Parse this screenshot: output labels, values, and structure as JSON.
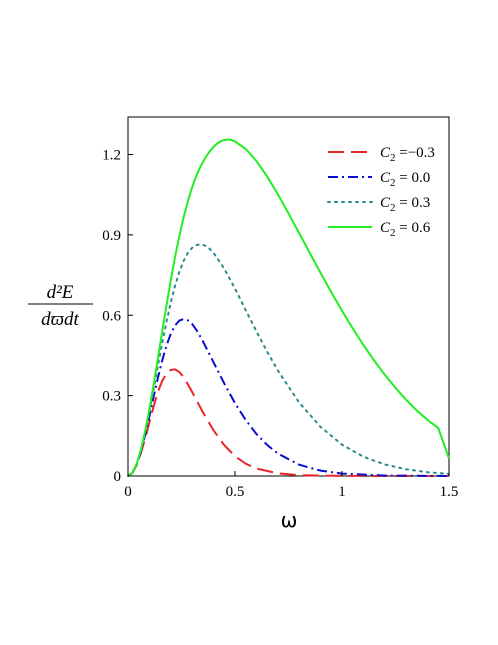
{
  "chart_data": {
    "type": "line",
    "xlabel": "ω",
    "ylabel": {
      "numerator": "d²E",
      "denominator": "dϖdt"
    },
    "xlim": [
      0,
      1.5
    ],
    "ylim": [
      0,
      1.34
    ],
    "xticks": [
      0,
      0.5,
      1,
      1.5
    ],
    "xtick_labels": [
      "0",
      "0.5",
      "1",
      "1.5"
    ],
    "yticks": [
      0,
      0.3,
      0.6,
      0.9,
      1.2
    ],
    "ytick_labels": [
      "0",
      "0.3",
      "0.6",
      "0.9",
      "1.2"
    ],
    "grid": false,
    "legend_position": "top-right",
    "series": [
      {
        "name": "C2 = -0.3",
        "legend_symbol": "C",
        "legend_sub": "2",
        "legend_rest": " =−0.3",
        "color": "#e8262b",
        "dash": "long-dash",
        "points": [
          [
            0,
            0
          ],
          [
            0.02,
            0.011
          ],
          [
            0.04,
            0.04
          ],
          [
            0.06,
            0.085
          ],
          [
            0.08,
            0.14
          ],
          [
            0.1,
            0.2
          ],
          [
            0.12,
            0.26
          ],
          [
            0.14,
            0.315
          ],
          [
            0.16,
            0.355
          ],
          [
            0.18,
            0.383
          ],
          [
            0.2,
            0.396
          ],
          [
            0.22,
            0.398
          ],
          [
            0.24,
            0.388
          ],
          [
            0.26,
            0.368
          ],
          [
            0.28,
            0.342
          ],
          [
            0.3,
            0.313
          ],
          [
            0.32,
            0.283
          ],
          [
            0.35,
            0.238
          ],
          [
            0.4,
            0.17
          ],
          [
            0.45,
            0.115
          ],
          [
            0.5,
            0.074
          ],
          [
            0.55,
            0.046
          ],
          [
            0.6,
            0.028
          ],
          [
            0.7,
            0.01
          ],
          [
            0.8,
            0.003
          ],
          [
            1.0,
            0.0005
          ],
          [
            1.2,
            0.0001
          ],
          [
            1.5,
            0
          ]
        ]
      },
      {
        "name": "C2 = 0.0",
        "legend_symbol": "C",
        "legend_sub": "2",
        "legend_rest": " = 0.0",
        "color": "#0d0dcc",
        "dash": "dash-dot",
        "points": [
          [
            0,
            0
          ],
          [
            0.02,
            0.011
          ],
          [
            0.04,
            0.042
          ],
          [
            0.06,
            0.09
          ],
          [
            0.08,
            0.152
          ],
          [
            0.1,
            0.222
          ],
          [
            0.12,
            0.296
          ],
          [
            0.14,
            0.367
          ],
          [
            0.16,
            0.432
          ],
          [
            0.18,
            0.487
          ],
          [
            0.2,
            0.531
          ],
          [
            0.22,
            0.562
          ],
          [
            0.24,
            0.58
          ],
          [
            0.26,
            0.586
          ],
          [
            0.28,
            0.581
          ],
          [
            0.3,
            0.567
          ],
          [
            0.32,
            0.545
          ],
          [
            0.35,
            0.503
          ],
          [
            0.4,
            0.424
          ],
          [
            0.45,
            0.345
          ],
          [
            0.5,
            0.272
          ],
          [
            0.55,
            0.209
          ],
          [
            0.6,
            0.157
          ],
          [
            0.65,
            0.116
          ],
          [
            0.7,
            0.084
          ],
          [
            0.8,
            0.042
          ],
          [
            0.9,
            0.02
          ],
          [
            1.0,
            0.009
          ],
          [
            1.2,
            0.0017
          ],
          [
            1.5,
            0.0001
          ]
        ]
      },
      {
        "name": "C2 = 0.3",
        "legend_symbol": "C",
        "legend_sub": "2",
        "legend_rest": " = 0.3",
        "color": "#2a8a8a",
        "dash": "dotted",
        "points": [
          [
            0,
            0
          ],
          [
            0.02,
            0.011
          ],
          [
            0.04,
            0.043
          ],
          [
            0.06,
            0.094
          ],
          [
            0.08,
            0.161
          ],
          [
            0.1,
            0.24
          ],
          [
            0.12,
            0.325
          ],
          [
            0.14,
            0.412
          ],
          [
            0.16,
            0.497
          ],
          [
            0.18,
            0.576
          ],
          [
            0.2,
            0.648
          ],
          [
            0.22,
            0.71
          ],
          [
            0.24,
            0.762
          ],
          [
            0.26,
            0.803
          ],
          [
            0.28,
            0.833
          ],
          [
            0.3,
            0.852
          ],
          [
            0.32,
            0.862
          ],
          [
            0.34,
            0.865
          ],
          [
            0.36,
            0.86
          ],
          [
            0.38,
            0.849
          ],
          [
            0.4,
            0.833
          ],
          [
            0.45,
            0.773
          ],
          [
            0.5,
            0.7
          ],
          [
            0.55,
            0.619
          ],
          [
            0.6,
            0.54
          ],
          [
            0.65,
            0.464
          ],
          [
            0.7,
            0.394
          ],
          [
            0.8,
            0.274
          ],
          [
            0.9,
            0.183
          ],
          [
            1.0,
            0.117
          ],
          [
            1.1,
            0.072
          ],
          [
            1.2,
            0.043
          ],
          [
            1.3,
            0.025
          ],
          [
            1.4,
            0.014
          ],
          [
            1.5,
            0.008
          ]
        ]
      },
      {
        "name": "C2 = 0.6",
        "legend_symbol": "C",
        "legend_sub": "2",
        "legend_rest": " = 0.6",
        "color": "#22ee22",
        "dash": "solid",
        "points": [
          [
            0,
            0
          ],
          [
            0.02,
            0.011
          ],
          [
            0.04,
            0.044
          ],
          [
            0.06,
            0.097
          ],
          [
            0.08,
            0.167
          ],
          [
            0.1,
            0.25
          ],
          [
            0.12,
            0.342
          ],
          [
            0.14,
            0.44
          ],
          [
            0.16,
            0.54
          ],
          [
            0.18,
            0.638
          ],
          [
            0.2,
            0.731
          ],
          [
            0.22,
            0.818
          ],
          [
            0.24,
            0.896
          ],
          [
            0.26,
            0.966
          ],
          [
            0.28,
            1.027
          ],
          [
            0.3,
            1.079
          ],
          [
            0.32,
            1.122
          ],
          [
            0.34,
            1.157
          ],
          [
            0.36,
            1.186
          ],
          [
            0.38,
            1.21
          ],
          [
            0.4,
            1.229
          ],
          [
            0.42,
            1.243
          ],
          [
            0.44,
            1.252
          ],
          [
            0.46,
            1.256
          ],
          [
            0.48,
            1.255
          ],
          [
            0.5,
            1.249
          ],
          [
            0.55,
            1.221
          ],
          [
            0.6,
            1.176
          ],
          [
            0.65,
            1.118
          ],
          [
            0.7,
            1.052
          ],
          [
            0.75,
            0.98
          ],
          [
            0.8,
            0.906
          ],
          [
            0.85,
            0.832
          ],
          [
            0.9,
            0.758
          ],
          [
            0.95,
            0.686
          ],
          [
            1.0,
            0.617
          ],
          [
            1.05,
            0.551
          ],
          [
            1.1,
            0.489
          ],
          [
            1.15,
            0.431
          ],
          [
            1.2,
            0.378
          ],
          [
            1.25,
            0.329
          ],
          [
            1.3,
            0.284
          ],
          [
            1.35,
            0.244
          ],
          [
            1.4,
            0.209
          ],
          [
            1.45,
            0.179
          ],
          [
            1.5,
            0.065
          ]
        ]
      }
    ]
  }
}
